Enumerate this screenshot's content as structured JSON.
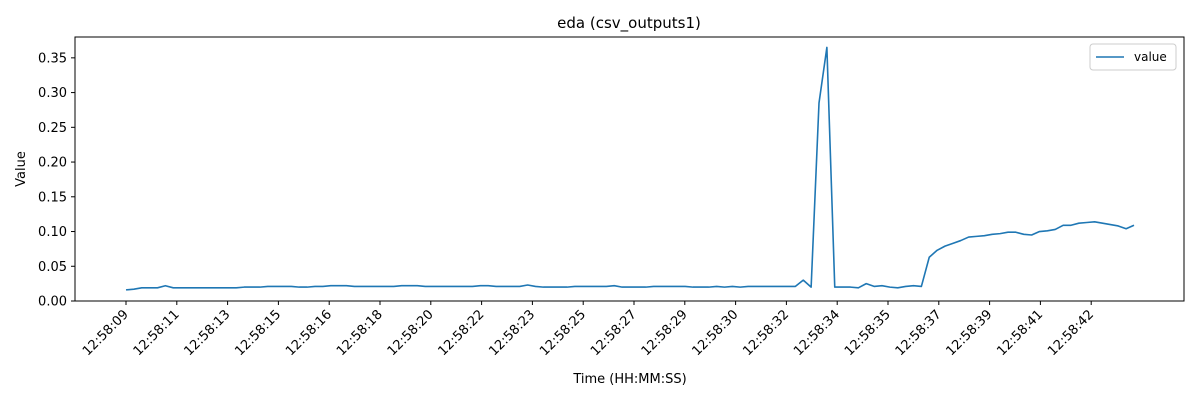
{
  "chart_data": {
    "type": "line",
    "title": "eda (csv_outputs1)",
    "xlabel": "Time (HH:MM:SS)",
    "ylabel": "Value",
    "x_ticks": [
      "12:58:09",
      "12:58:11",
      "12:58:13",
      "12:58:15",
      "12:58:16",
      "12:58:18",
      "12:58:20",
      "12:58:22",
      "12:58:23",
      "12:58:25",
      "12:58:27",
      "12:58:29",
      "12:58:30",
      "12:58:32",
      "12:58:34",
      "12:58:35",
      "12:58:37",
      "12:58:39",
      "12:58:41",
      "12:58:42"
    ],
    "y_ticks": [
      "0.00",
      "0.05",
      "0.10",
      "0.15",
      "0.20",
      "0.25",
      "0.30",
      "0.35"
    ],
    "ylim": [
      0,
      0.38
    ],
    "grid": false,
    "legend_position": "top-right",
    "line_color": "#1f77b4",
    "series": [
      {
        "name": "value",
        "values": [
          0.016,
          0.017,
          0.019,
          0.019,
          0.019,
          0.022,
          0.019,
          0.019,
          0.019,
          0.019,
          0.019,
          0.019,
          0.019,
          0.019,
          0.019,
          0.02,
          0.02,
          0.02,
          0.021,
          0.021,
          0.021,
          0.021,
          0.02,
          0.02,
          0.021,
          0.021,
          0.022,
          0.022,
          0.022,
          0.021,
          0.021,
          0.021,
          0.021,
          0.021,
          0.021,
          0.022,
          0.022,
          0.022,
          0.021,
          0.021,
          0.021,
          0.021,
          0.021,
          0.021,
          0.021,
          0.022,
          0.022,
          0.021,
          0.021,
          0.021,
          0.021,
          0.023,
          0.021,
          0.02,
          0.02,
          0.02,
          0.02,
          0.021,
          0.021,
          0.021,
          0.021,
          0.021,
          0.022,
          0.02,
          0.02,
          0.02,
          0.02,
          0.021,
          0.021,
          0.021,
          0.021,
          0.021,
          0.02,
          0.02,
          0.02,
          0.021,
          0.02,
          0.021,
          0.02,
          0.021,
          0.021,
          0.021,
          0.021,
          0.021,
          0.021,
          0.021,
          0.03,
          0.02,
          0.285,
          0.365,
          0.02,
          0.02,
          0.02,
          0.019,
          0.025,
          0.021,
          0.022,
          0.02,
          0.019,
          0.021,
          0.022,
          0.021,
          0.063,
          0.073,
          0.079,
          0.083,
          0.087,
          0.092,
          0.093,
          0.094,
          0.096,
          0.097,
          0.099,
          0.099,
          0.096,
          0.095,
          0.1,
          0.101,
          0.103,
          0.109,
          0.109,
          0.112,
          0.113,
          0.114,
          0.112,
          0.11,
          0.108,
          0.104,
          0.109
        ]
      }
    ]
  }
}
